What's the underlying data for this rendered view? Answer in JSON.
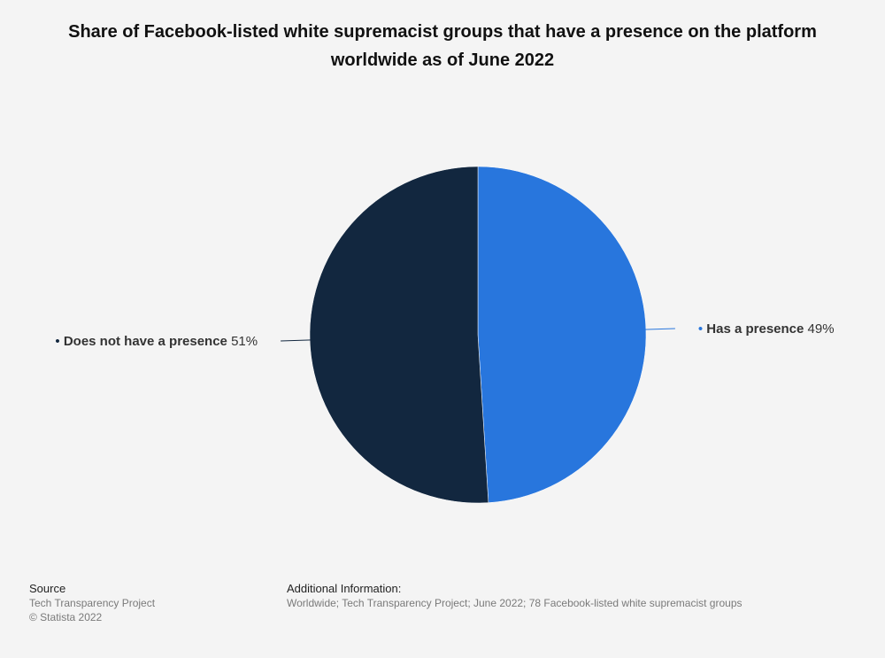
{
  "title": "Share of Facebook-listed white supremacist groups that have a presence on the platform worldwide as of June 2022",
  "chart_data": {
    "type": "pie",
    "slices": [
      {
        "label": "Has a presence",
        "value": 49,
        "display": "49%",
        "color": "#2876dd"
      },
      {
        "label": "Does not have a presence",
        "value": 51,
        "display": "51%",
        "color": "#12273f"
      }
    ],
    "legend": "none",
    "labels_position": "outside"
  },
  "footer": {
    "source_heading": "Source",
    "source_text": "Tech Transparency Project",
    "copyright": "© Statista 2022",
    "info_heading": "Additional Information:",
    "info_text": "Worldwide; Tech Transparency Project; June 2022; 78 Facebook-listed white supremacist groups"
  }
}
